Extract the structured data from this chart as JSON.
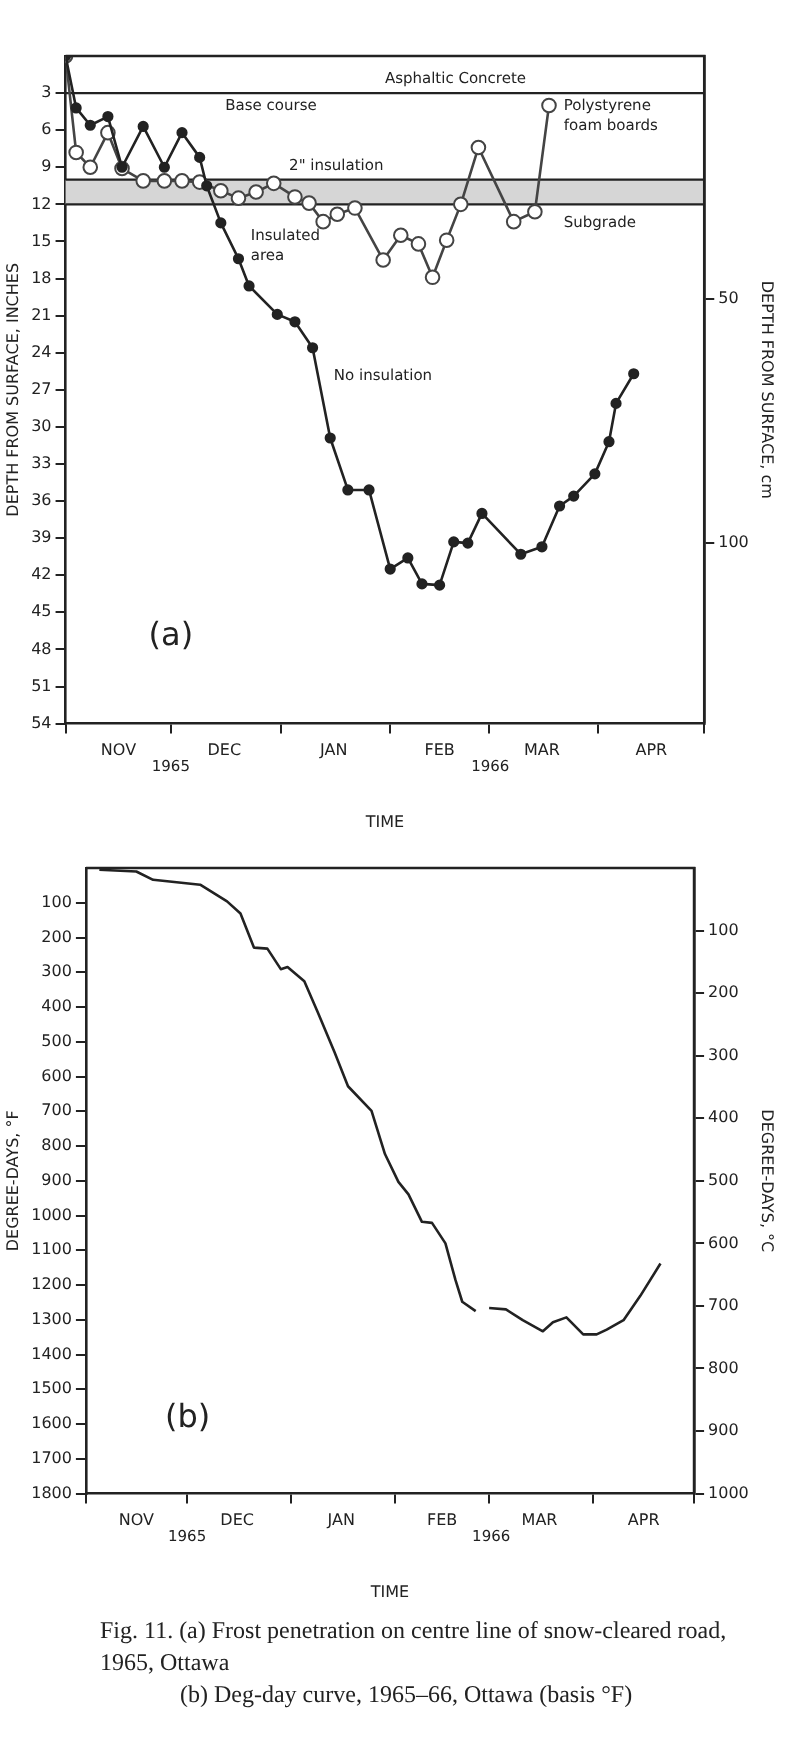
{
  "chart_data": [
    {
      "type": "line",
      "xlabel": "TIME",
      "ylabel": "DEPTH FROM SURFACE, INCHES",
      "y2label": "DEPTH FROM SURFACE, cm",
      "xlim": [
        "1965-11-01",
        "1966-05-01"
      ],
      "xticks": [
        {
          "value": "1965-11-01",
          "label": null
        },
        {
          "value": "1965-11-16",
          "label": "NOV"
        },
        {
          "value": "1965-12-01",
          "label": null
        },
        {
          "value": "1965-12-16",
          "label": "DEC"
        },
        {
          "value": "1966-01-01",
          "label": null
        },
        {
          "value": "1966-01-16",
          "label": "JAN"
        },
        {
          "value": "1966-02-01",
          "label": null
        },
        {
          "value": "1966-02-15",
          "label": "FEB"
        },
        {
          "value": "1966-03-01",
          "label": null
        },
        {
          "value": "1966-03-16",
          "label": "MAR"
        },
        {
          "value": "1966-04-01",
          "label": null
        },
        {
          "value": "1966-04-16",
          "label": "APR"
        },
        {
          "value": "1966-05-01",
          "label": null
        }
      ],
      "ylim": [
        54,
        0
      ],
      "yticks": [
        3,
        6,
        9,
        12,
        15,
        18,
        21,
        24,
        27,
        30,
        33,
        36,
        39,
        42,
        45,
        48,
        51,
        54
      ],
      "y2lim": [
        137.2,
        0
      ],
      "y2ticks": [
        50,
        100
      ],
      "marker": "circle",
      "grid": false,
      "legend": false,
      "series": [
        {
          "name": "No insulation",
          "color": "#222222",
          "x": [
            "1965-11-01",
            "1965-11-04",
            "1965-11-08",
            "1965-11-13",
            "1965-11-17",
            "1965-11-23",
            "1965-11-29",
            "1965-12-04",
            "1965-12-09",
            "1965-12-11",
            "1965-12-15",
            "1965-12-20",
            "1965-12-23",
            "1965-12-31",
            "1966-01-05",
            "1966-01-10",
            "1966-01-15",
            "1966-01-20",
            "1966-01-26",
            "1966-02-01",
            "1966-02-06",
            "1966-02-10",
            "1966-02-15",
            "1966-02-19",
            "1966-02-23",
            "1966-02-27",
            "1966-03-10",
            "1966-03-16",
            "1966-03-21",
            "1966-03-25",
            "1966-03-31",
            "1966-04-04",
            "1966-04-06",
            "1966-04-11"
          ],
          "values": [
            0,
            4.2,
            5.6,
            4.9,
            9.0,
            5.7,
            9.0,
            6.2,
            8.2,
            10.5,
            13.5,
            16.4,
            18.6,
            20.9,
            21.5,
            23.6,
            30.9,
            35.1,
            35.1,
            41.5,
            40.6,
            42.7,
            42.8,
            39.3,
            39.4,
            37.0,
            40.3,
            39.7,
            36.4,
            35.6,
            33.8,
            31.2,
            28.1,
            25.7
          ]
        },
        {
          "name": "Insulated area",
          "color": "#444444",
          "x": [
            "1965-11-01",
            "1965-11-04",
            "1965-11-08",
            "1965-11-13",
            "1965-11-17",
            "1965-11-23",
            "1965-11-29",
            "1965-12-04",
            "1965-12-09",
            "1965-12-15",
            "1965-12-20",
            "1965-12-25",
            "1965-12-30",
            "1966-01-05",
            "1966-01-09",
            "1966-01-13",
            "1966-01-17",
            "1966-01-22",
            "1966-01-30",
            "1966-02-04",
            "1966-02-09",
            "1966-02-13",
            "1966-02-17",
            "1966-02-21",
            "1966-02-26",
            "1966-03-08",
            "1966-03-14",
            "1966-03-18"
          ],
          "values": [
            0,
            7.8,
            9.0,
            6.2,
            9.1,
            10.1,
            10.1,
            10.1,
            10.2,
            10.9,
            11.5,
            11.0,
            10.3,
            11.4,
            11.9,
            13.4,
            12.8,
            12.3,
            16.5,
            14.5,
            15.2,
            17.9,
            14.9,
            12.0,
            7.4,
            13.4,
            12.6,
            4.0
          ]
        }
      ],
      "ref_lines": [
        {
          "axis": "y",
          "value": 3
        },
        {
          "axis": "y",
          "value": 10
        },
        {
          "axis": "y",
          "value": 12
        }
      ],
      "bands": [
        {
          "axis": "y",
          "from": 10,
          "to": 12,
          "color": "#d6d6d6"
        }
      ],
      "annotations": [
        "Asphaltic Concrete",
        "Base course",
        "2\" insulation",
        "Polystyrene foam boards",
        "Subgrade",
        "(a)",
        "1965",
        "1966"
      ]
    },
    {
      "type": "line",
      "xlabel": "TIME",
      "ylabel": "DEGREE-DAYS, °F",
      "y2label": "DEGREE-DAYS, °C",
      "xlim": [
        "1965-11-01",
        "1966-05-01"
      ],
      "xticks": [
        {
          "value": "1965-11-01",
          "label": null
        },
        {
          "value": "1965-11-16",
          "label": "NOV"
        },
        {
          "value": "1965-12-01",
          "label": null
        },
        {
          "value": "1965-12-16",
          "label": "DEC"
        },
        {
          "value": "1966-01-01",
          "label": null
        },
        {
          "value": "1966-01-16",
          "label": "JAN"
        },
        {
          "value": "1966-02-01",
          "label": null
        },
        {
          "value": "1966-02-15",
          "label": "FEB"
        },
        {
          "value": "1966-03-01",
          "label": null
        },
        {
          "value": "1966-03-16",
          "label": "MAR"
        },
        {
          "value": "1966-04-01",
          "label": null
        },
        {
          "value": "1966-04-16",
          "label": "APR"
        },
        {
          "value": "1966-05-01",
          "label": null
        }
      ],
      "ylim": [
        1800,
        0
      ],
      "yticks": [
        100,
        200,
        300,
        400,
        500,
        600,
        700,
        800,
        900,
        1000,
        1100,
        1200,
        1300,
        1400,
        1500,
        1600,
        1700,
        1800
      ],
      "y2lim": [
        1000,
        0
      ],
      "y2ticks": [
        100,
        200,
        300,
        400,
        500,
        600,
        700,
        800,
        900,
        1000
      ],
      "marker": "none",
      "grid": false,
      "legend": false,
      "series": [
        {
          "color": "#222222",
          "x": [
            "1965-11-05",
            "1965-11-16",
            "1965-11-21",
            "1965-12-05",
            "1965-12-13",
            "1965-12-17",
            "1965-12-21",
            "1965-12-25",
            "1965-12-29",
            "1965-12-31",
            "1966-01-05",
            "1966-01-09",
            "1966-01-14",
            "1966-01-18",
            "1966-01-25",
            "1966-01-29",
            "1966-02-02",
            "1966-02-05",
            "1966-02-09",
            "1966-02-12",
            "1966-02-16",
            "1966-02-19",
            "1966-02-21",
            "1966-02-25",
            "1966-02-27",
            "1966-03-01",
            "1966-03-06",
            "1966-03-11",
            "1966-03-17",
            "1966-03-20",
            "1966-03-24",
            "1966-03-29",
            "1966-04-02",
            "1966-04-05",
            "1966-04-10",
            "1966-04-15",
            "1966-04-21"
          ],
          "values": [
            5,
            10,
            34,
            48,
            96,
            131,
            229,
            232,
            291,
            285,
            326,
            415,
            530,
            628,
            699,
            823,
            903,
            939,
            1018,
            1021,
            1080,
            1186,
            1248,
            1275,
            null,
            1266,
            1270,
            1301,
            1333,
            1307,
            1293,
            1342,
            1342,
            1328,
            1301,
            1231,
            1138
          ]
        }
      ],
      "annotations": [
        "(b)",
        "1965",
        "1966",
        "Fig. 11. (a) Frost penetration on centre line of snow-cleared road, 1965, Ottawa",
        "(b) Deg-day curve, 1965–66, Ottawa (basis °F)"
      ]
    }
  ]
}
